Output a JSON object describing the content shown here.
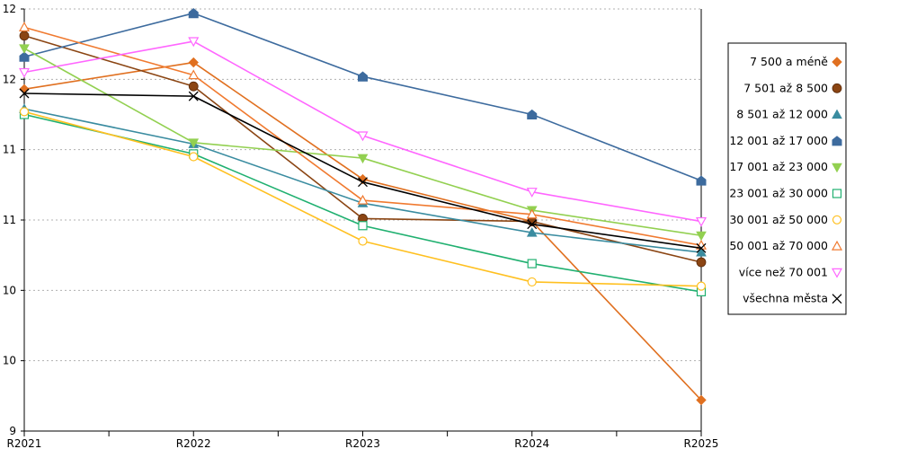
{
  "chart_data": {
    "type": "line",
    "title": "",
    "xlabel": "",
    "ylabel": "",
    "x": [
      "R2021",
      "R2022",
      "R2023",
      "R2024",
      "R2025"
    ],
    "yticks": [
      {
        "value": 9.0,
        "label": "9"
      },
      {
        "value": 9.5,
        "label": "10"
      },
      {
        "value": 10.0,
        "label": "10"
      },
      {
        "value": 10.5,
        "label": "11"
      },
      {
        "value": 11.0,
        "label": "11"
      },
      {
        "value": 11.5,
        "label": "12"
      },
      {
        "value": 12.0,
        "label": "12"
      }
    ],
    "ylim": [
      9.0,
      12.0
    ],
    "grid": "horizontal dotted",
    "legend_position": "right",
    "series": [
      {
        "name": "7 500 a méně",
        "color": "#E07020",
        "marker": "diamond",
        "values": [
          11.43,
          11.62,
          10.79,
          10.49,
          9.22
        ]
      },
      {
        "name": "7 501 až 8 500",
        "color": "#8B4513",
        "marker": "circle",
        "values": [
          11.81,
          11.45,
          10.51,
          10.49,
          10.2
        ]
      },
      {
        "name": "8 501 až 12 000",
        "color": "#3A8CA0",
        "marker": "triangle",
        "values": [
          11.29,
          11.04,
          10.62,
          10.41,
          10.27
        ]
      },
      {
        "name": "12 001 až 17 000",
        "color": "#3D6B9E",
        "marker": "house",
        "values": [
          11.66,
          11.97,
          11.52,
          11.25,
          10.78
        ]
      },
      {
        "name": "17 001 až 23 000",
        "color": "#92D050",
        "marker": "triangle-down",
        "values": [
          11.72,
          11.05,
          10.94,
          10.57,
          10.39
        ]
      },
      {
        "name": "23 001 až 30 000",
        "color": "#20B070",
        "marker": "square-open",
        "values": [
          11.25,
          10.97,
          10.46,
          10.19,
          9.99
        ]
      },
      {
        "name": "30 001 až 50 000",
        "color": "#FFC020",
        "marker": "circle-open",
        "values": [
          11.27,
          10.95,
          10.35,
          10.06,
          10.03
        ]
      },
      {
        "name": "50 001 až 70 000",
        "color": "#F07A30",
        "marker": "triangle-open",
        "values": [
          11.87,
          11.53,
          10.64,
          10.54,
          10.32
        ]
      },
      {
        "name": "více než 70 001",
        "color": "#FF66FF",
        "marker": "triangle-down-open",
        "values": [
          11.55,
          11.77,
          11.1,
          10.7,
          10.49
        ]
      },
      {
        "name": "všechna města",
        "color": "#000000",
        "marker": "x",
        "values": [
          11.4,
          11.38,
          10.77,
          10.47,
          10.3
        ]
      }
    ]
  }
}
